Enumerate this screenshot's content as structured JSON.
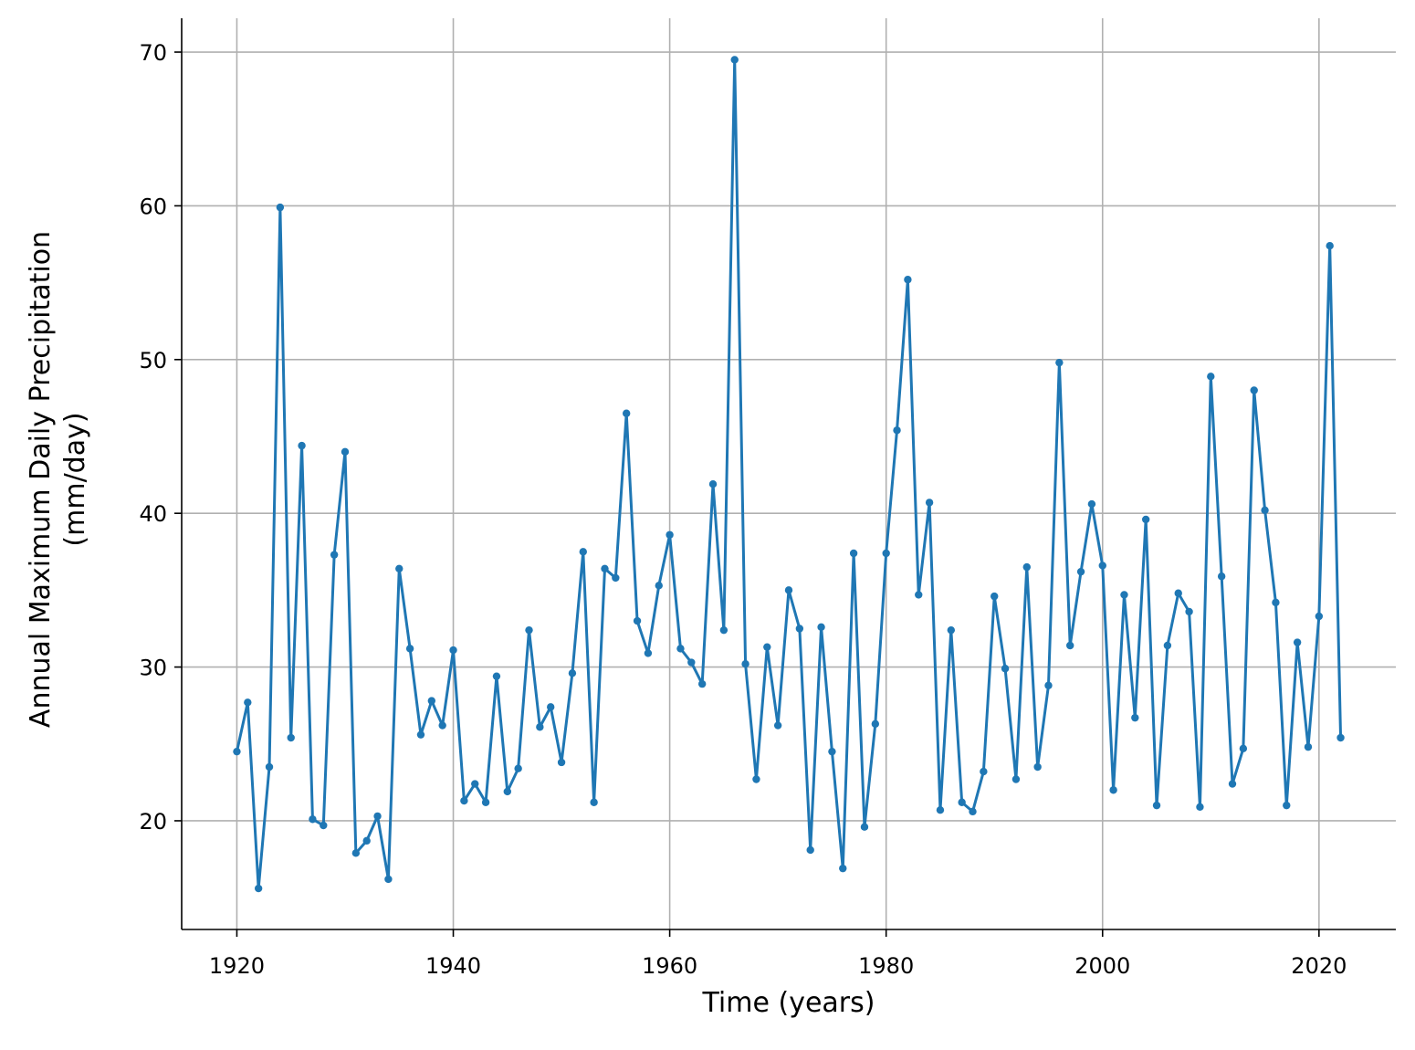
{
  "chart_data": {
    "type": "line",
    "xlabel": "Time (years)",
    "ylabel": [
      "Annual Maximum Daily Precipitation",
      "(mm/day)"
    ],
    "x": [
      1920,
      1921,
      1922,
      1923,
      1924,
      1925,
      1926,
      1927,
      1928,
      1929,
      1930,
      1931,
      1932,
      1933,
      1934,
      1935,
      1936,
      1937,
      1938,
      1939,
      1940,
      1941,
      1942,
      1943,
      1944,
      1945,
      1946,
      1947,
      1948,
      1949,
      1950,
      1951,
      1952,
      1953,
      1954,
      1955,
      1956,
      1957,
      1958,
      1959,
      1960,
      1961,
      1962,
      1963,
      1964,
      1965,
      1966,
      1967,
      1968,
      1969,
      1970,
      1971,
      1972,
      1973,
      1974,
      1975,
      1976,
      1977,
      1978,
      1979,
      1980,
      1981,
      1982,
      1983,
      1984,
      1985,
      1986,
      1987,
      1988,
      1989,
      1990,
      1991,
      1992,
      1993,
      1994,
      1995,
      1996,
      1997,
      1998,
      1999,
      2000,
      2001,
      2002,
      2003,
      2004,
      2005,
      2006,
      2007,
      2008,
      2009,
      2010,
      2011,
      2012,
      2013,
      2014,
      2015,
      2016,
      2017,
      2018,
      2019,
      2020,
      2021,
      2022
    ],
    "series": [
      {
        "color": "#1f77b4",
        "values": [
          24.5,
          27.7,
          15.6,
          23.5,
          59.9,
          25.4,
          44.4,
          20.1,
          19.7,
          37.3,
          44.0,
          17.9,
          18.7,
          20.3,
          16.2,
          36.4,
          31.2,
          25.6,
          27.8,
          26.2,
          31.1,
          21.3,
          22.4,
          21.2,
          29.4,
          21.9,
          23.4,
          32.4,
          26.1,
          27.4,
          23.8,
          29.6,
          37.5,
          21.2,
          36.4,
          35.8,
          46.5,
          33.0,
          30.9,
          35.3,
          38.6,
          31.2,
          30.3,
          28.9,
          41.9,
          32.4,
          69.5,
          30.2,
          22.7,
          31.3,
          26.2,
          35.0,
          32.5,
          18.1,
          32.6,
          24.5,
          16.9,
          37.4,
          19.6,
          26.3,
          37.4,
          45.4,
          55.2,
          34.7,
          40.7,
          20.7,
          32.4,
          21.2,
          20.6,
          23.2,
          34.6,
          29.9,
          22.7,
          36.5,
          23.5,
          28.8,
          49.8,
          31.4,
          36.2,
          40.6,
          36.6,
          22.0,
          34.7,
          26.7,
          39.6,
          21.0,
          31.4,
          34.8,
          33.6,
          20.9,
          48.9,
          35.9,
          22.4,
          24.7,
          48.0,
          40.2,
          34.2,
          21.0,
          31.6,
          24.8,
          33.3,
          57.4,
          25.4
        ]
      }
    ],
    "xlim": [
      1914.9,
      2027.1
    ],
    "ylim": [
      12.93,
      72.2
    ],
    "xticks": [
      1920,
      1940,
      1960,
      1980,
      2000,
      2020
    ],
    "yticks": [
      20,
      30,
      40,
      50,
      60,
      70
    ],
    "grid": true
  }
}
